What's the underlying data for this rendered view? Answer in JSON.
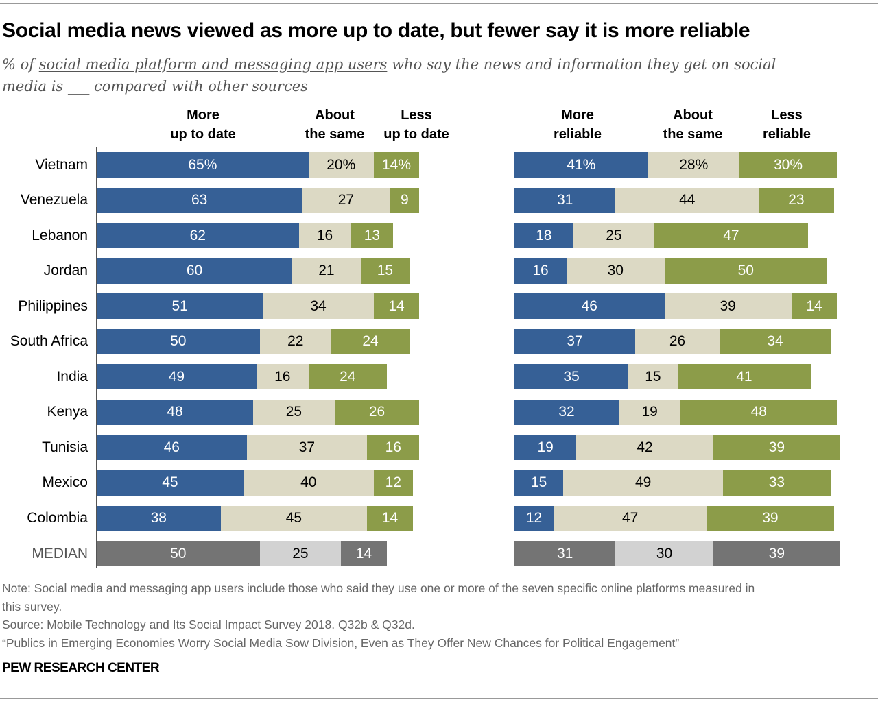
{
  "title": "Social media news viewed as more up to date, but fewer say it is more reliable",
  "subtitle": {
    "prefix": "% of ",
    "underlined": "social media platform and messaging app users",
    "suffix": " who say the news and information they get on social media is ___ compared with other sources"
  },
  "colors": {
    "more": "#366096",
    "same": "#dcd9c4",
    "less": "#8c9c49",
    "median_dark": "#747474",
    "median_light": "#d2d2d2"
  },
  "chart_data": [
    {
      "type": "bar",
      "orientation": "horizontal",
      "stacked": true,
      "categories": [
        "Vietnam",
        "Venezuela",
        "Lebanon",
        "Jordan",
        "Philippines",
        "South Africa",
        "India",
        "Kenya",
        "Tunisia",
        "Mexico",
        "Colombia",
        "MEDIAN"
      ],
      "series": [
        {
          "name": "More up to date",
          "values": [
            65,
            63,
            62,
            60,
            51,
            50,
            49,
            48,
            46,
            45,
            38,
            50
          ]
        },
        {
          "name": "About the same",
          "values": [
            20,
            27,
            16,
            21,
            34,
            22,
            16,
            25,
            37,
            40,
            45,
            25
          ]
        },
        {
          "name": "Less up to date",
          "values": [
            14,
            9,
            13,
            15,
            14,
            24,
            24,
            26,
            16,
            12,
            14,
            14
          ]
        }
      ],
      "first_row_suffix": "%",
      "xlim": [
        0,
        100
      ]
    },
    {
      "type": "bar",
      "orientation": "horizontal",
      "stacked": true,
      "categories": [
        "Vietnam",
        "Venezuela",
        "Lebanon",
        "Jordan",
        "Philippines",
        "South Africa",
        "India",
        "Kenya",
        "Tunisia",
        "Mexico",
        "Colombia",
        "MEDIAN"
      ],
      "series": [
        {
          "name": "More reliable",
          "values": [
            41,
            31,
            18,
            16,
            46,
            37,
            35,
            32,
            19,
            15,
            12,
            31
          ]
        },
        {
          "name": "About the same",
          "values": [
            28,
            44,
            25,
            30,
            39,
            26,
            15,
            19,
            42,
            49,
            47,
            30
          ]
        },
        {
          "name": "Less reliable",
          "values": [
            30,
            23,
            47,
            50,
            14,
            34,
            41,
            48,
            39,
            33,
            39,
            39
          ]
        }
      ],
      "first_row_suffix": "%",
      "xlim": [
        0,
        100
      ]
    }
  ],
  "headers_left": [
    {
      "l1": "More",
      "l2": "up to date"
    },
    {
      "l1": "About",
      "l2": "the same"
    },
    {
      "l1": "Less",
      "l2": "up to date"
    }
  ],
  "headers_right": [
    {
      "l1": "More",
      "l2": "reliable"
    },
    {
      "l1": "About",
      "l2": "the same"
    },
    {
      "l1": "Less",
      "l2": "reliable"
    }
  ],
  "footer": {
    "note1": "Note: Social media and messaging app users include those who said they use one or more of the seven specific online platforms measured in",
    "note2": "this survey.",
    "source": "Source: Mobile Technology and Its Social Impact Survey 2018. Q32b & Q32d.",
    "report": "“Publics in Emerging Economies Worry Social Media Sow Division, Even as They Offer New Chances for Political Engagement”",
    "brand": "PEW RESEARCH CENTER"
  }
}
